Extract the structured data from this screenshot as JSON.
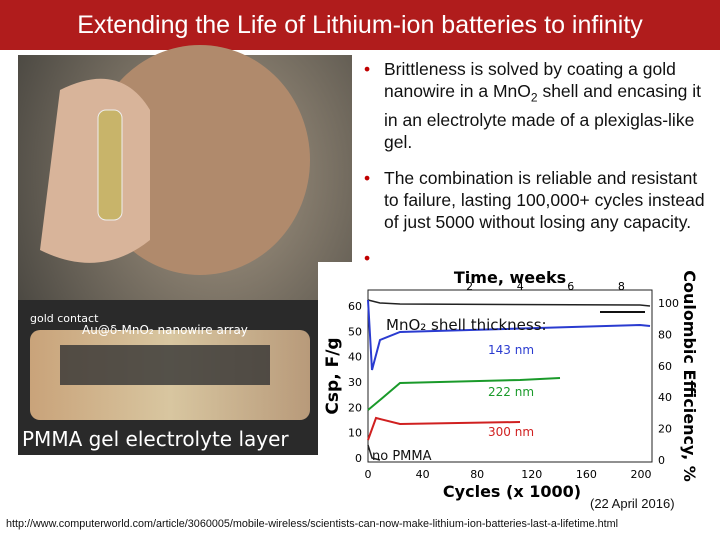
{
  "header": {
    "title": "Extending the Life of Lithium-ion batteries to infinity"
  },
  "bullets": [
    [
      "Brittleness is solved by coating a gold nanowire in a MnO",
      "2",
      " shell and encasing it in an electrolyte made of a plexiglas-like gel."
    ],
    [
      "The combination is reliable and resistant to failure, lasting 100,000+ cycles instead of just 5000 without losing any capacity."
    ]
  ],
  "photo": {
    "labels": [
      "gold contact",
      "Au@δ-MnO₂ nanowire array",
      "PMMA gel electrolyte layer"
    ]
  },
  "figure": {
    "top_axis_label": "Time, weeks",
    "top_ticks": [
      2,
      4,
      6,
      8
    ],
    "bottom_axis_label": "Cycles (x 1000)",
    "bottom_ticks": [
      0,
      40,
      80,
      120,
      160,
      200
    ],
    "left_axis_label": "Csp, F/g",
    "left_ticks": [
      0,
      10,
      20,
      30,
      40,
      50,
      60
    ],
    "right_axis_label": "Coulombic Efficiency, %",
    "right_ticks": [
      0,
      20,
      40,
      60,
      80,
      100
    ],
    "annotations": [
      "MnO₂ shell thickness:",
      "143 nm",
      "222 nm",
      "300 nm",
      "no PMMA"
    ]
  },
  "date": "(22 April 2016)",
  "source": "http://www.computerworld.com/article/3060005/mobile-wireless/scientists-can-now-make-lithium-ion-batteries-last-a-lifetime.html"
}
